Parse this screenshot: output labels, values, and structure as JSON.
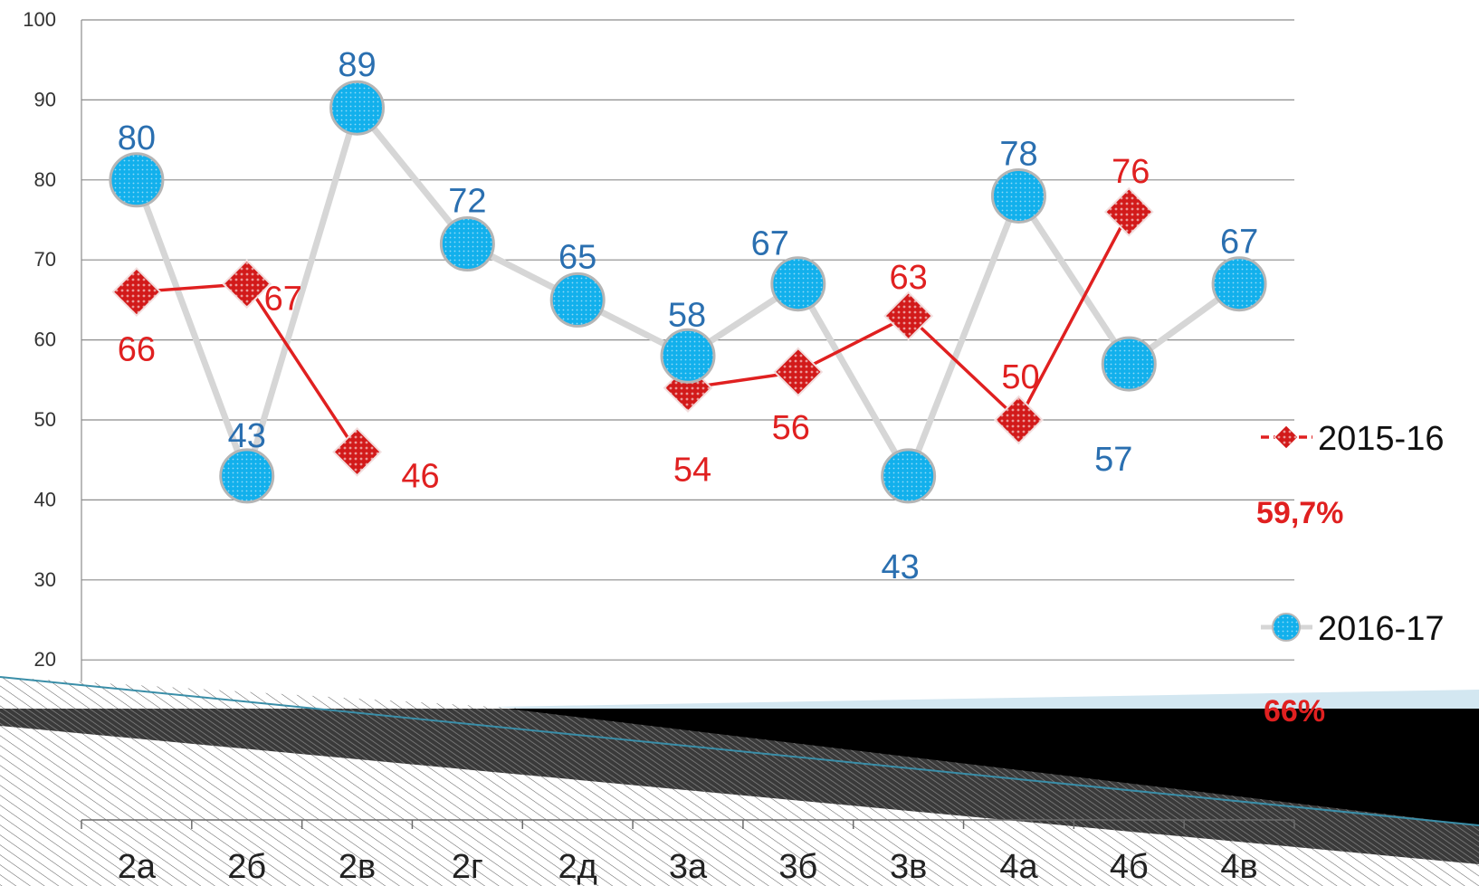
{
  "chart_data": {
    "type": "line",
    "categories": [
      "2а",
      "2б",
      "2в",
      "2г",
      "2д",
      "3а",
      "3б",
      "3в",
      "4а",
      "4б",
      "4в"
    ],
    "ylim": [
      0,
      100
    ],
    "yticks": [
      0,
      10,
      20,
      30,
      40,
      50,
      60,
      70,
      80,
      90,
      100
    ],
    "grid": true,
    "legend_position": "right",
    "series": [
      {
        "name": "2015-16",
        "color": "#e02020",
        "marker": "diamond",
        "values": [
          66,
          67,
          46,
          null,
          null,
          54,
          56,
          63,
          50,
          76,
          null
        ],
        "summary": "59,7%"
      },
      {
        "name": "2016-17",
        "color": "#1aa7e0",
        "line_color": "#d6d6d6",
        "label_color": "#2a6fb0",
        "marker": "circle",
        "values": [
          80,
          43,
          89,
          72,
          65,
          58,
          67,
          43,
          78,
          57,
          67
        ],
        "summary": "66%"
      }
    ]
  }
}
